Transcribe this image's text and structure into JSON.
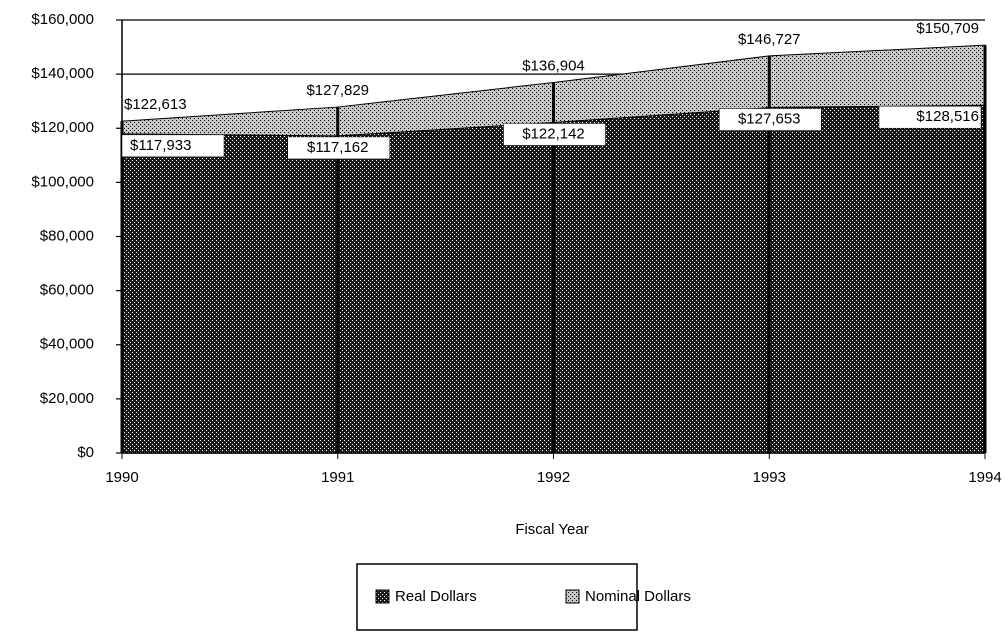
{
  "chart_data": {
    "type": "area",
    "x_label": "Fiscal Year",
    "x": [
      1990,
      1991,
      1992,
      1993,
      1994
    ],
    "xlim": [
      1990,
      1994
    ],
    "xticks": [
      1990,
      1991,
      1992,
      1993,
      1994
    ],
    "ylim": [
      0,
      160000
    ],
    "yticks": [
      {
        "value": 0,
        "label": "$0"
      },
      {
        "value": 20000,
        "label": "$20,000"
      },
      {
        "value": 40000,
        "label": "$40,000"
      },
      {
        "value": 60000,
        "label": "$60,000"
      },
      {
        "value": 80000,
        "label": "$80,000"
      },
      {
        "value": 100000,
        "label": "$100,000"
      },
      {
        "value": 120000,
        "label": "$120,000"
      },
      {
        "value": 140000,
        "label": "$140,000"
      },
      {
        "value": 160000,
        "label": "$160,000"
      }
    ],
    "grid": true,
    "legend": "bottom",
    "series": [
      {
        "name": "Real Dollars",
        "color": "#1a1a1a",
        "values": [
          117933,
          117162,
          122142,
          127653,
          128516
        ],
        "value_labels": [
          "$117,933",
          "$117,162",
          "$122,142",
          "$127,653",
          "$128,516"
        ]
      },
      {
        "name": "Nominal Dollars",
        "color": "#c8c8c8",
        "values": [
          122613,
          127829,
          136904,
          146727,
          150709
        ],
        "value_labels": [
          "$122,613",
          "$127,829",
          "$136,904",
          "$146,727",
          "$150,709"
        ]
      }
    ]
  }
}
